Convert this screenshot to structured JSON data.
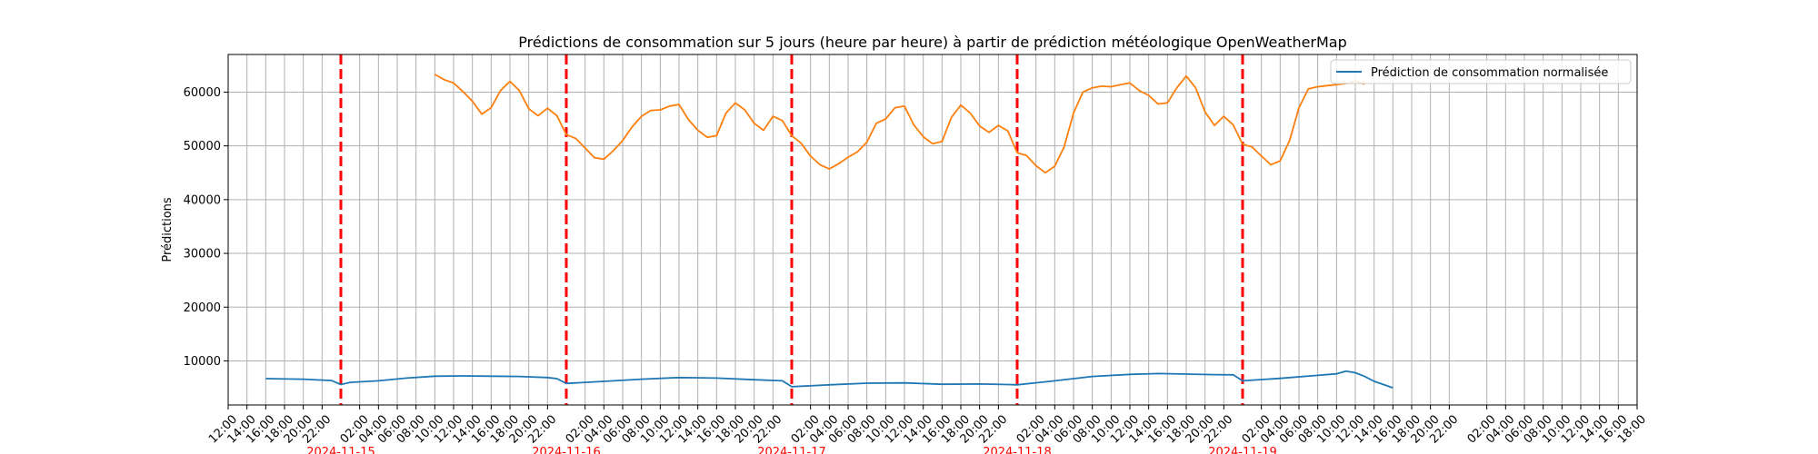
{
  "chart_data": {
    "type": "line",
    "title": "Prédictions de consommation sur 5 jours (heure par heure) à partir de prédiction météologique OpenWeatherMap",
    "ylabel": "Prédictions",
    "xlabel": "",
    "grid": true,
    "legend_position": "top-right",
    "ylim": [
      1800,
      67000
    ],
    "yticks": [
      10000,
      20000,
      30000,
      40000,
      50000,
      60000
    ],
    "x_start": "2024-11-14 12:00",
    "x_end": "2024-11-20 18:00",
    "xtick_labels": [
      "12:00",
      "14:00",
      "16:00",
      "18:00",
      "20:00",
      "22:00",
      "02:00",
      "04:00",
      "06:00",
      "08:00",
      "10:00",
      "12:00",
      "14:00",
      "16:00",
      "18:00",
      "20:00",
      "22:00",
      "02:00",
      "04:00",
      "06:00",
      "08:00",
      "10:00",
      "12:00",
      "14:00",
      "16:00",
      "18:00",
      "20:00",
      "22:00",
      "02:00",
      "04:00",
      "06:00",
      "08:00",
      "10:00",
      "12:00",
      "14:00",
      "16:00",
      "18:00",
      "20:00",
      "22:00",
      "02:00",
      "04:00",
      "06:00",
      "08:00",
      "10:00",
      "12:00",
      "14:00",
      "16:00",
      "18:00",
      "20:00",
      "22:00",
      "02:00",
      "04:00",
      "06:00",
      "08:00",
      "10:00",
      "12:00",
      "14:00",
      "16:00",
      "18:00",
      "20:00",
      "22:00",
      "02:00",
      "04:00",
      "06:00",
      "08:00",
      "10:00",
      "12:00",
      "14:00",
      "16:00",
      "18:00"
    ],
    "xtick_times": [
      "2024-11-14 12:00",
      "2024-11-14 14:00",
      "2024-11-14 16:00",
      "2024-11-14 18:00",
      "2024-11-14 20:00",
      "2024-11-14 22:00",
      "2024-11-15 02:00",
      "2024-11-15 04:00",
      "2024-11-15 06:00",
      "2024-11-15 08:00",
      "2024-11-15 10:00",
      "2024-11-15 12:00",
      "2024-11-15 14:00",
      "2024-11-15 16:00",
      "2024-11-15 18:00",
      "2024-11-15 20:00",
      "2024-11-15 22:00",
      "2024-11-16 02:00",
      "2024-11-16 04:00",
      "2024-11-16 06:00",
      "2024-11-16 08:00",
      "2024-11-16 10:00",
      "2024-11-16 12:00",
      "2024-11-16 14:00",
      "2024-11-16 16:00",
      "2024-11-16 18:00",
      "2024-11-16 20:00",
      "2024-11-16 22:00",
      "2024-11-17 02:00",
      "2024-11-17 04:00",
      "2024-11-17 06:00",
      "2024-11-17 08:00",
      "2024-11-17 10:00",
      "2024-11-17 12:00",
      "2024-11-17 14:00",
      "2024-11-17 16:00",
      "2024-11-17 18:00",
      "2024-11-17 20:00",
      "2024-11-17 22:00",
      "2024-11-18 02:00",
      "2024-11-18 04:00",
      "2024-11-18 06:00",
      "2024-11-18 08:00",
      "2024-11-18 10:00",
      "2024-11-18 12:00",
      "2024-11-18 14:00",
      "2024-11-18 16:00",
      "2024-11-18 18:00",
      "2024-11-18 20:00",
      "2024-11-18 22:00",
      "2024-11-19 02:00",
      "2024-11-19 04:00",
      "2024-11-19 06:00",
      "2024-11-19 08:00",
      "2024-11-19 10:00",
      "2024-11-19 12:00",
      "2024-11-19 14:00",
      "2024-11-19 16:00",
      "2024-11-19 18:00",
      "2024-11-19 20:00",
      "2024-11-19 22:00",
      "2024-11-20 02:00",
      "2024-11-20 04:00",
      "2024-11-20 06:00",
      "2024-11-20 08:00",
      "2024-11-20 10:00",
      "2024-11-20 12:00",
      "2024-11-20 14:00",
      "2024-11-20 16:00",
      "2024-11-20 18:00"
    ],
    "day_markers": [
      {
        "time": "2024-11-15 00:00",
        "label": "2024-11-15"
      },
      {
        "time": "2024-11-16 00:00",
        "label": "2024-11-16"
      },
      {
        "time": "2024-11-17 00:00",
        "label": "2024-11-17"
      },
      {
        "time": "2024-11-18 00:00",
        "label": "2024-11-18"
      },
      {
        "time": "2024-11-19 00:00",
        "label": "2024-11-19"
      }
    ],
    "series": [
      {
        "name": "Prédiction de consommation normalisée",
        "color": "#1f77b4",
        "x": [
          "2024-11-14 16:00",
          "2024-11-14 20:00",
          "2024-11-14 23:00",
          "2024-11-15 00:00",
          "2024-11-15 01:00",
          "2024-11-15 04:00",
          "2024-11-15 07:00",
          "2024-11-15 10:00",
          "2024-11-15 13:00",
          "2024-11-15 16:00",
          "2024-11-15 19:00",
          "2024-11-15 22:00",
          "2024-11-15 23:00",
          "2024-11-16 00:00",
          "2024-11-16 04:00",
          "2024-11-16 08:00",
          "2024-11-16 12:00",
          "2024-11-16 16:00",
          "2024-11-16 20:00",
          "2024-11-16 23:00",
          "2024-11-17 00:00",
          "2024-11-17 04:00",
          "2024-11-17 08:00",
          "2024-11-17 12:00",
          "2024-11-17 16:00",
          "2024-11-17 20:00",
          "2024-11-17 23:00",
          "2024-11-18 00:00",
          "2024-11-18 04:00",
          "2024-11-18 08:00",
          "2024-11-18 12:00",
          "2024-11-18 15:00",
          "2024-11-18 18:00",
          "2024-11-18 21:00",
          "2024-11-18 23:00",
          "2024-11-19 00:00",
          "2024-11-19 04:00",
          "2024-11-19 08:00",
          "2024-11-19 10:00",
          "2024-11-19 11:00",
          "2024-11-19 12:00",
          "2024-11-19 13:00",
          "2024-11-19 14:00",
          "2024-11-19 15:00",
          "2024-11-19 16:00"
        ],
        "y": [
          6700,
          6600,
          6350,
          5600,
          6000,
          6300,
          6800,
          7150,
          7200,
          7150,
          7100,
          6900,
          6700,
          5800,
          6200,
          6600,
          6900,
          6800,
          6500,
          6300,
          5200,
          5550,
          5850,
          5900,
          5650,
          5700,
          5600,
          5550,
          6300,
          7100,
          7500,
          7650,
          7550,
          7450,
          7400,
          6300,
          6750,
          7300,
          7600,
          8100,
          7800,
          7100,
          6200,
          5600,
          5000
        ]
      },
      {
        "name": "",
        "color": "#ff7f0e",
        "x": [
          "2024-11-15 10:00",
          "2024-11-15 11:00",
          "2024-11-15 12:00",
          "2024-11-15 13:00",
          "2024-11-15 14:00",
          "2024-11-15 15:00",
          "2024-11-15 16:00",
          "2024-11-15 17:00",
          "2024-11-15 18:00",
          "2024-11-15 19:00",
          "2024-11-15 20:00",
          "2024-11-15 21:00",
          "2024-11-15 22:00",
          "2024-11-15 23:00",
          "2024-11-16 00:00",
          "2024-11-16 01:00",
          "2024-11-16 02:00",
          "2024-11-16 03:00",
          "2024-11-16 04:00",
          "2024-11-16 05:00",
          "2024-11-16 06:00",
          "2024-11-16 07:00",
          "2024-11-16 08:00",
          "2024-11-16 09:00",
          "2024-11-16 10:00",
          "2024-11-16 11:00",
          "2024-11-16 12:00",
          "2024-11-16 13:00",
          "2024-11-16 14:00",
          "2024-11-16 15:00",
          "2024-11-16 16:00",
          "2024-11-16 17:00",
          "2024-11-16 18:00",
          "2024-11-16 19:00",
          "2024-11-16 20:00",
          "2024-11-16 21:00",
          "2024-11-16 22:00",
          "2024-11-16 23:00",
          "2024-11-17 00:00",
          "2024-11-17 01:00",
          "2024-11-17 02:00",
          "2024-11-17 03:00",
          "2024-11-17 04:00",
          "2024-11-17 05:00",
          "2024-11-17 06:00",
          "2024-11-17 07:00",
          "2024-11-17 08:00",
          "2024-11-17 09:00",
          "2024-11-17 10:00",
          "2024-11-17 11:00",
          "2024-11-17 12:00",
          "2024-11-17 13:00",
          "2024-11-17 14:00",
          "2024-11-17 15:00",
          "2024-11-17 16:00",
          "2024-11-17 17:00",
          "2024-11-17 18:00",
          "2024-11-17 19:00",
          "2024-11-17 20:00",
          "2024-11-17 21:00",
          "2024-11-17 22:00",
          "2024-11-17 23:00",
          "2024-11-18 00:00",
          "2024-11-18 01:00",
          "2024-11-18 02:00",
          "2024-11-18 03:00",
          "2024-11-18 04:00",
          "2024-11-18 05:00",
          "2024-11-18 06:00",
          "2024-11-18 07:00",
          "2024-11-18 08:00",
          "2024-11-18 09:00",
          "2024-11-18 10:00",
          "2024-11-18 11:00",
          "2024-11-18 12:00",
          "2024-11-18 13:00",
          "2024-11-18 14:00",
          "2024-11-18 15:00",
          "2024-11-18 16:00",
          "2024-11-18 17:00",
          "2024-11-18 18:00",
          "2024-11-18 19:00",
          "2024-11-18 20:00",
          "2024-11-18 21:00",
          "2024-11-18 22:00",
          "2024-11-18 23:00",
          "2024-11-19 00:00",
          "2024-11-19 01:00",
          "2024-11-19 02:00",
          "2024-11-19 03:00",
          "2024-11-19 04:00",
          "2024-11-19 05:00",
          "2024-11-19 06:00",
          "2024-11-19 07:00",
          "2024-11-19 08:00",
          "2024-11-19 09:00",
          "2024-11-19 10:00",
          "2024-11-19 11:00",
          "2024-11-19 12:00",
          "2024-11-19 13:00"
        ],
        "y": [
          63300,
          62300,
          61700,
          60100,
          58300,
          55900,
          57100,
          60300,
          62000,
          60300,
          56900,
          55600,
          57000,
          55600,
          52100,
          51400,
          49600,
          47800,
          47500,
          49100,
          51000,
          53500,
          55500,
          56600,
          56700,
          57400,
          57700,
          54900,
          52900,
          51600,
          51900,
          56100,
          58000,
          56700,
          54200,
          52900,
          55500,
          54700,
          51900,
          50500,
          48100,
          46500,
          45700,
          46700,
          47900,
          48900,
          50700,
          54200,
          55000,
          57100,
          57400,
          53900,
          51700,
          50400,
          50800,
          55300,
          57600,
          56100,
          53700,
          52500,
          53800,
          52800,
          48700,
          48200,
          46300,
          45000,
          46200,
          49800,
          56100,
          60000,
          60800,
          61100,
          61000,
          61400,
          61700,
          60300,
          59400,
          57800,
          58000,
          60800,
          63000,
          60800,
          56300,
          53800,
          55500,
          53900,
          50300,
          49800,
          48100,
          46500,
          47200,
          51000,
          57100,
          60600,
          61000,
          61200,
          61400,
          61600,
          62000,
          61500
        ]
      }
    ]
  }
}
